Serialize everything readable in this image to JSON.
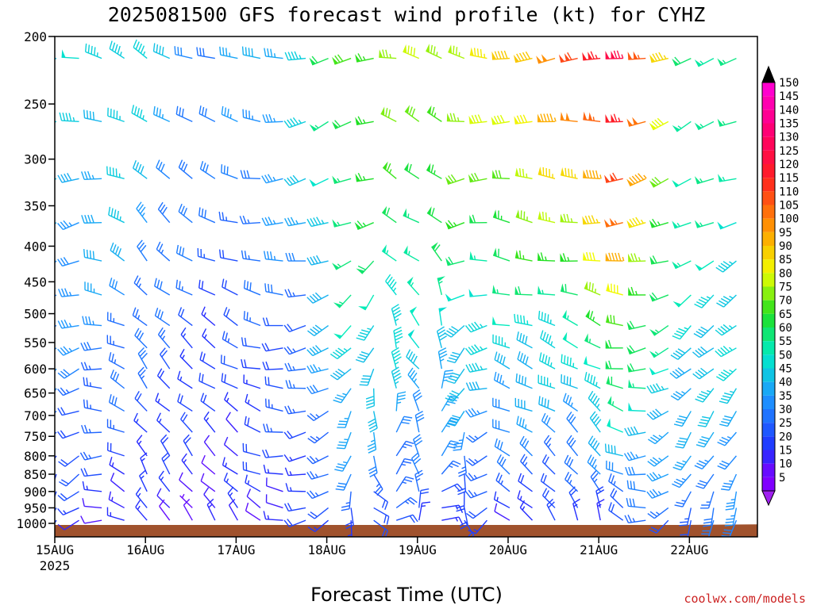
{
  "chart_data": {
    "type": "wind_barbs",
    "title": "2025081500 GFS forecast wind profile (kt) for CYHZ",
    "xlabel": "Forecast Time (UTC)",
    "ylabel": "",
    "y_scale": "log",
    "ylim": [
      1000,
      200
    ],
    "y_ticks": [
      200,
      250,
      300,
      350,
      400,
      450,
      500,
      550,
      600,
      650,
      700,
      750,
      800,
      850,
      900,
      950,
      1000
    ],
    "x_ticks": [
      {
        "label": "15AUG",
        "sublabel": "2025",
        "hour": 0
      },
      {
        "label": "16AUG",
        "hour": 24
      },
      {
        "label": "17AUG",
        "hour": 48
      },
      {
        "label": "18AUG",
        "hour": 72
      },
      {
        "label": "19AUG",
        "hour": 96
      },
      {
        "label": "20AUG",
        "hour": 120
      },
      {
        "label": "21AUG",
        "hour": 144
      },
      {
        "label": "22AUG",
        "hour": 168
      }
    ],
    "xlim_hours": [
      0,
      186
    ],
    "levels_hpa": [
      215,
      265,
      320,
      370,
      420,
      470,
      520,
      560,
      600,
      640,
      690,
      740,
      800,
      850,
      900,
      950,
      990
    ],
    "times_hours": [
      0,
      6,
      12,
      18,
      24,
      30,
      36,
      42,
      48,
      54,
      60,
      66,
      72,
      78,
      84,
      90,
      96,
      102,
      108,
      114,
      120,
      126,
      132,
      138,
      144,
      150,
      156,
      162,
      168,
      174,
      180,
      186
    ],
    "speed_profile": [
      {
        "hour": 0,
        "top_kt": 42,
        "mid_kt": 32,
        "low_kt": 15
      },
      {
        "hour": 18,
        "top_kt": 48,
        "mid_kt": 30,
        "low_kt": 12
      },
      {
        "hour": 42,
        "top_kt": 30,
        "mid_kt": 18,
        "low_kt": 10
      },
      {
        "hour": 66,
        "top_kt": 45,
        "mid_kt": 25,
        "low_kt": 15
      },
      {
        "hour": 78,
        "top_kt": 68,
        "mid_kt": 48,
        "low_kt": 20
      },
      {
        "hour": 114,
        "top_kt": 80,
        "mid_kt": 45,
        "low_kt": 15
      },
      {
        "hour": 138,
        "top_kt": 105,
        "mid_kt": 50,
        "low_kt": 15
      },
      {
        "hour": 150,
        "top_kt": 128,
        "mid_kt": 70,
        "low_kt": 20
      },
      {
        "hour": 168,
        "top_kt": 60,
        "mid_kt": 45,
        "low_kt": 25
      },
      {
        "hour": 186,
        "top_kt": 50,
        "mid_kt": 45,
        "low_kt": 30
      }
    ],
    "direction_profile": [
      {
        "hour": 0,
        "top_deg": 250,
        "low_deg": 200
      },
      {
        "hour": 24,
        "top_deg": 310,
        "low_deg": 330
      },
      {
        "hour": 48,
        "top_deg": 280,
        "low_deg": 320
      },
      {
        "hour": 72,
        "top_deg": 250,
        "low_deg": 240
      },
      {
        "hour": 96,
        "top_deg": 290,
        "low_deg": 0
      },
      {
        "hour": 120,
        "top_deg": 270,
        "low_deg": 310
      },
      {
        "hour": 144,
        "top_deg": 260,
        "low_deg": 340
      },
      {
        "hour": 168,
        "top_deg": 250,
        "low_deg": 200
      },
      {
        "hour": 186,
        "top_deg": 260,
        "low_deg": 190
      }
    ],
    "surface_pressure_hpa": [
      1002,
      1004,
      1003,
      1002,
      1001,
      1000,
      1002,
      1004,
      1001,
      998
    ],
    "colorbar": {
      "labels": [
        "150",
        "145",
        "140",
        "135",
        "130",
        "125",
        "120",
        "115",
        "110",
        "105",
        "100",
        "95",
        "90",
        "85",
        "80",
        "75",
        "70",
        "65",
        "60",
        "55",
        "50",
        "45",
        "40",
        "35",
        "30",
        "25",
        "20",
        "15",
        "10",
        "5"
      ],
      "stops": [
        {
          "kt": 5,
          "color": "#8000ff"
        },
        {
          "kt": 15,
          "color": "#2030ff"
        },
        {
          "kt": 35,
          "color": "#1e9bff"
        },
        {
          "kt": 50,
          "color": "#00ecc8"
        },
        {
          "kt": 65,
          "color": "#20e020"
        },
        {
          "kt": 80,
          "color": "#f0ff00"
        },
        {
          "kt": 95,
          "color": "#ffa000"
        },
        {
          "kt": 115,
          "color": "#ff2020"
        },
        {
          "kt": 130,
          "color": "#ff0066"
        },
        {
          "kt": 150,
          "color": "#ff00dd"
        }
      ],
      "cap_top_color": "#000000",
      "cap_bottom_color": "#a020f0"
    },
    "ground_color": "#a0522d",
    "credit": "coolwx.com/models"
  }
}
